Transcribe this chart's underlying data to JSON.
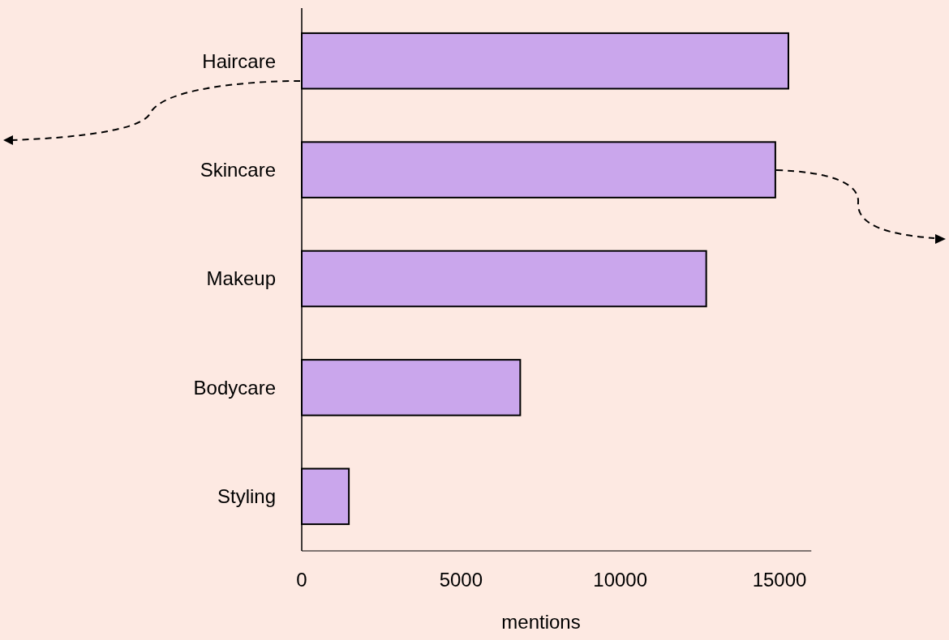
{
  "chart_data": {
    "type": "bar",
    "orientation": "horizontal",
    "xlabel": "mentions",
    "categories": [
      "Haircare",
      "Skincare",
      "Makeup",
      "Bodycare",
      "Styling"
    ],
    "values": [
      15280,
      14870,
      12700,
      6860,
      1480
    ],
    "color": "#caa6ec",
    "xlim": [
      0,
      16000
    ],
    "xticks": [
      0,
      5000,
      10000,
      15000
    ],
    "grid": false
  }
}
